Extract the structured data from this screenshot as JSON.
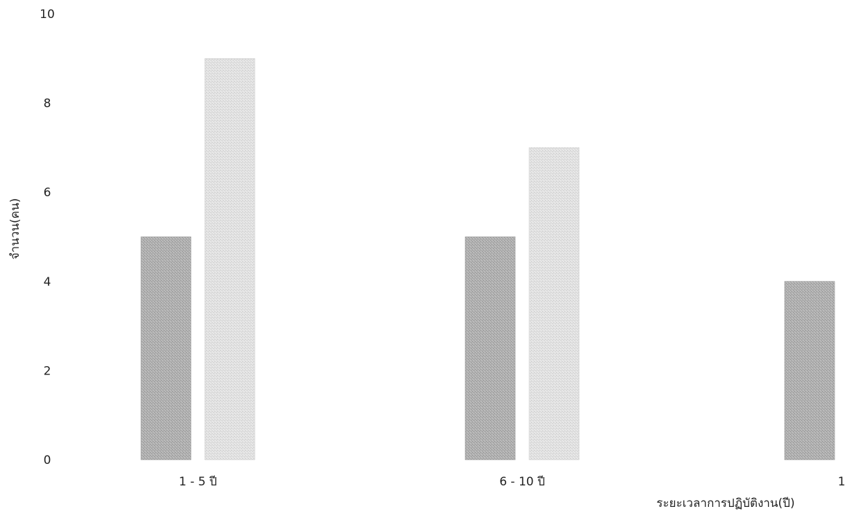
{
  "chart_data": {
    "type": "bar",
    "title": "",
    "xlabel": "ระยะเวลาการปฏิบัติงาน(ปี)",
    "ylabel": "จำนวน(คน)",
    "ylim": [
      0,
      10
    ],
    "yticks": [
      "0",
      "2",
      "4",
      "6",
      "8",
      "10"
    ],
    "categories": [
      "1 - 5 ปี",
      "6 - 10 ปี",
      "1"
    ],
    "series": [
      {
        "values": [
          5,
          5,
          4
        ],
        "color": "#a9a9a9"
      },
      {
        "values": [
          9,
          7,
          null
        ],
        "color": "#dddddd"
      }
    ],
    "grid": false,
    "legend": "none"
  }
}
